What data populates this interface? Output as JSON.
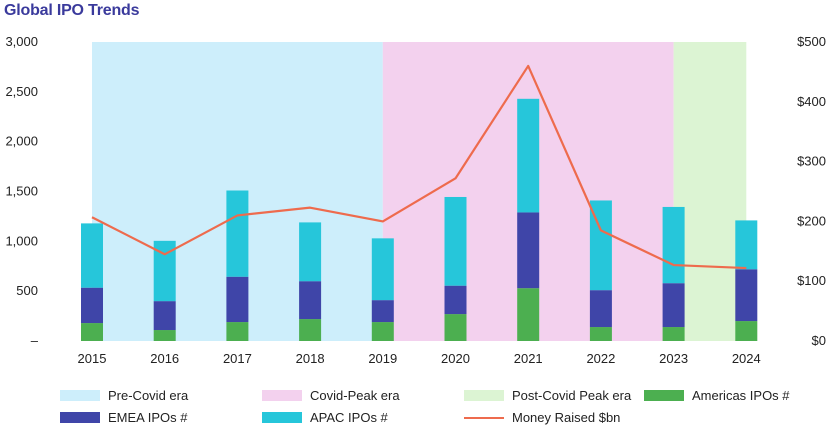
{
  "chart_data": {
    "type": "bar",
    "title": "Global IPO Trends",
    "categories": [
      "2015",
      "2016",
      "2017",
      "2018",
      "2019",
      "2020",
      "2021",
      "2022",
      "2023",
      "2024"
    ],
    "series": [
      {
        "name": "Americas IPOs #",
        "color": "#4caf50",
        "values": [
          180,
          110,
          190,
          220,
          190,
          270,
          530,
          140,
          140,
          200
        ]
      },
      {
        "name": "EMEA IPOs #",
        "color": "#3f45a8",
        "values": [
          355,
          290,
          455,
          380,
          220,
          285,
          760,
          370,
          440,
          520
        ]
      },
      {
        "name": "APAC IPOs #",
        "color": "#26c6da",
        "values": [
          645,
          605,
          865,
          590,
          620,
          890,
          1140,
          900,
          765,
          490
        ]
      }
    ],
    "line_series": {
      "name": "Money Raised $bn",
      "color": "#ee6b4d",
      "axis": "right",
      "values": [
        207,
        145,
        210,
        223,
        200,
        272,
        460,
        185,
        127,
        122
      ]
    },
    "eras": [
      {
        "name": "Pre-Covid era",
        "color": "#cdeefb",
        "from": "2015",
        "to": "2019"
      },
      {
        "name": "Covid-Peak era",
        "color": "#f3d1ee",
        "from": "2019",
        "to": "2023"
      },
      {
        "name": "Post-Covid Peak era",
        "color": "#dcf4d3",
        "from": "2023",
        "to": "2024"
      }
    ],
    "y_left": {
      "min": 0,
      "max": 3000,
      "ticks": [
        0,
        500,
        1000,
        1500,
        2000,
        2500,
        3000
      ],
      "tick_labels": [
        "–",
        "500",
        "1,000",
        "1,500",
        "2,000",
        "2,500",
        "3,000"
      ]
    },
    "y_right": {
      "min": 0,
      "max": 500,
      "ticks": [
        0,
        100,
        200,
        300,
        400,
        500
      ],
      "tick_labels": [
        "$0",
        "$100",
        "$200",
        "$300",
        "$400",
        "$500"
      ]
    },
    "legend": [
      {
        "label": "Pre-Covid era",
        "kind": "box",
        "color": "#cdeefb"
      },
      {
        "label": "Covid-Peak era",
        "kind": "box",
        "color": "#f3d1ee"
      },
      {
        "label": "Post-Covid Peak era",
        "kind": "box",
        "color": "#dcf4d3"
      },
      {
        "label": "Americas IPOs #",
        "kind": "box",
        "color": "#4caf50"
      },
      {
        "label": "EMEA IPOs #",
        "kind": "box",
        "color": "#3f45a8"
      },
      {
        "label": "APAC IPOs #",
        "kind": "box",
        "color": "#26c6da"
      },
      {
        "label": "Money Raised $bn",
        "kind": "line",
        "color": "#ee6b4d"
      }
    ],
    "legend_position": "bottom"
  }
}
